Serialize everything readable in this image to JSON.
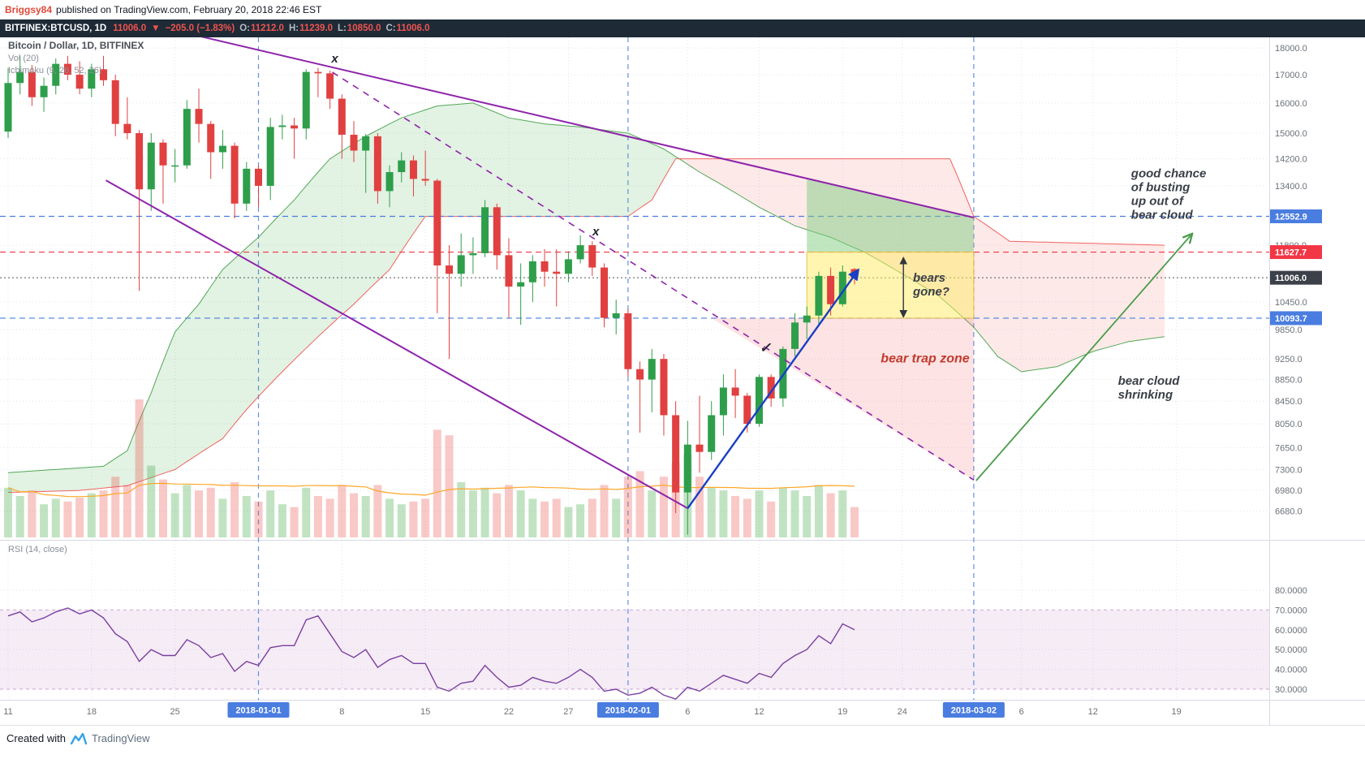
{
  "header": {
    "author": "Briggsy84",
    "published": "published on TradingView.com, February 20, 2018 22:46 EST"
  },
  "toolbar": {
    "symbol": "BITFINEX:BTCUSD, 1D",
    "last": "11006.0",
    "dir_arrow": "▼",
    "change": "−205.0 (−1.83%)",
    "o_label": "O:",
    "o": "11212.0",
    "h_label": "H:",
    "h": "11239.0",
    "l_label": "L:",
    "l": "10850.0",
    "c_label": "C:",
    "c": "11006.0"
  },
  "legend": {
    "title": "Bitcoin / Dollar, 1D, BITFINEX",
    "vol": "Vol (20)",
    "ichimoku": "Ichimoku (9, 26, 52, 26)"
  },
  "rsi_label": "RSI (14, close)",
  "footer": {
    "created_with": "Created with",
    "brand": "TradingView"
  },
  "colors": {
    "up": "#2e9e4b",
    "down": "#e14040",
    "vol_up": "rgba(76,175,80,0.35)",
    "vol_down": "rgba(231,76,70,0.30)",
    "cloud_up": "rgba(76,175,80,0.16)",
    "cloud_down": "rgba(239,83,80,0.13)",
    "senkou_a": "#43a047",
    "senkou_b": "#ef5350",
    "trendline": "#8e24aa",
    "arrow_blue": "#1a3fc4",
    "arrow_green": "#4a9d4a",
    "level_blue": "#4a7de0",
    "level_red": "#f23645",
    "price_badge_dark": "#3c4049",
    "rsi_line": "#7b3fa0",
    "rsi_band": "rgba(160,70,170,0.10)",
    "rsi_band_border": "rgba(150,70,160,0.45)",
    "volume_ma": "#ffa726",
    "zone_yellow": "rgba(255,236,100,0.50)",
    "zone_yellow_border": "rgba(230,190,60,0.90)",
    "zone_green": "rgba(130,205,130,0.50)",
    "zone_pink": "rgba(242,100,100,0.18)",
    "annotation_text": "#3a3f47",
    "bear_trap_text": "#c23b2e",
    "mark_text": "#22262e"
  },
  "chart_data": {
    "type": "candlestick",
    "symbol": "BITFINEX:BTCUSD",
    "interval": "1D",
    "start_date": "2017-12-11",
    "scale": "logarithmic",
    "ohlcv_columns": [
      "open",
      "high",
      "low",
      "close",
      "volume"
    ],
    "ohlcv": [
      [
        15050,
        17250,
        14850,
        16700,
        90
      ],
      [
        16700,
        17700,
        16300,
        17100,
        75
      ],
      [
        17100,
        17350,
        15900,
        16200,
        85
      ],
      [
        16200,
        16900,
        15700,
        16600,
        60
      ],
      [
        16600,
        17600,
        16300,
        17400,
        70
      ],
      [
        17400,
        17700,
        16800,
        17000,
        65
      ],
      [
        17000,
        17500,
        16300,
        16500,
        72
      ],
      [
        16500,
        17400,
        16200,
        17200,
        80
      ],
      [
        17200,
        17700,
        16600,
        16800,
        85
      ],
      [
        16800,
        17000,
        14900,
        15300,
        110
      ],
      [
        15300,
        16200,
        14800,
        15000,
        95
      ],
      [
        15000,
        15100,
        10700,
        13300,
        250
      ],
      [
        13300,
        15000,
        12700,
        14700,
        130
      ],
      [
        14700,
        14800,
        12900,
        14000,
        105
      ],
      [
        14000,
        14500,
        13500,
        14000,
        80
      ],
      [
        14000,
        16100,
        13900,
        15800,
        95
      ],
      [
        15800,
        16500,
        14700,
        15300,
        85
      ],
      [
        15300,
        15400,
        13600,
        14400,
        90
      ],
      [
        14400,
        15100,
        13900,
        14600,
        70
      ],
      [
        14600,
        14700,
        12500,
        12900,
        100
      ],
      [
        12900,
        14100,
        12700,
        13900,
        75
      ],
      [
        13900,
        14000,
        12800,
        13400,
        65
      ],
      [
        13400,
        15500,
        13000,
        15200,
        85
      ],
      [
        15200,
        15600,
        14800,
        15250,
        60
      ],
      [
        15250,
        15500,
        14200,
        15150,
        55
      ],
      [
        15150,
        17200,
        14800,
        17100,
        90
      ],
      [
        17100,
        17250,
        16200,
        17050,
        75
      ],
      [
        17050,
        17150,
        15800,
        16150,
        70
      ],
      [
        16150,
        16300,
        14200,
        14950,
        95
      ],
      [
        14950,
        15400,
        14100,
        14450,
        80
      ],
      [
        14450,
        14980,
        13200,
        14900,
        75
      ],
      [
        14900,
        15000,
        12900,
        13250,
        95
      ],
      [
        13250,
        14000,
        12800,
        13800,
        70
      ],
      [
        13800,
        14400,
        13500,
        14150,
        60
      ],
      [
        14150,
        14300,
        13100,
        13600,
        65
      ],
      [
        13600,
        14450,
        13400,
        13550,
        70
      ],
      [
        13550,
        13600,
        10200,
        11300,
        195
      ],
      [
        11300,
        11800,
        9250,
        11100,
        185
      ],
      [
        11100,
        12100,
        10800,
        11550,
        100
      ],
      [
        11550,
        12000,
        11100,
        11600,
        85
      ],
      [
        11600,
        13000,
        11500,
        12800,
        90
      ],
      [
        12800,
        12900,
        11200,
        11550,
        80
      ],
      [
        11550,
        11980,
        10100,
        10800,
        95
      ],
      [
        10800,
        11350,
        9950,
        10900,
        85
      ],
      [
        10900,
        11550,
        10450,
        11400,
        70
      ],
      [
        11400,
        11700,
        10800,
        11150,
        65
      ],
      [
        11150,
        11700,
        10350,
        11100,
        70
      ],
      [
        11100,
        11650,
        10900,
        11450,
        55
      ],
      [
        11450,
        12050,
        11350,
        11800,
        60
      ],
      [
        11800,
        11900,
        11050,
        11250,
        70
      ],
      [
        11250,
        11350,
        9900,
        10100,
        95
      ],
      [
        10100,
        10500,
        9750,
        10200,
        70
      ],
      [
        10200,
        10300,
        8900,
        9050,
        110
      ],
      [
        9050,
        9200,
        7900,
        8850,
        120
      ],
      [
        8850,
        9450,
        8250,
        9250,
        85
      ],
      [
        9250,
        9350,
        7850,
        8200,
        110
      ],
      [
        8200,
        8450,
        6650,
        6950,
        135
      ],
      [
        6950,
        8100,
        6350,
        7700,
        150
      ],
      [
        7700,
        8550,
        7250,
        7580,
        110
      ],
      [
        7580,
        8450,
        7450,
        8200,
        90
      ],
      [
        8200,
        8950,
        7850,
        8700,
        85
      ],
      [
        8700,
        9050,
        8150,
        8550,
        75
      ],
      [
        8550,
        8600,
        7900,
        8050,
        70
      ],
      [
        8050,
        8950,
        8000,
        8900,
        85
      ],
      [
        8900,
        8950,
        8350,
        8500,
        65
      ],
      [
        8500,
        9500,
        8350,
        9450,
        90
      ],
      [
        9450,
        10200,
        9300,
        10000,
        85
      ],
      [
        10000,
        10350,
        9650,
        10150,
        75
      ],
      [
        10150,
        11150,
        9950,
        11050,
        95
      ],
      [
        11050,
        11250,
        10150,
        10400,
        80
      ],
      [
        10400,
        11300,
        10350,
        11150,
        85
      ],
      [
        11212,
        11239,
        10850,
        11006,
        55
      ]
    ],
    "rsi_period": 14,
    "rsi_values": [
      67,
      69,
      64,
      66,
      69,
      71,
      68,
      70,
      66,
      58,
      54,
      44,
      50,
      47,
      47,
      55,
      52,
      46,
      48,
      39,
      44,
      42,
      51,
      52,
      52,
      65,
      67,
      58,
      49,
      46,
      50,
      41,
      45,
      47,
      43,
      43,
      31,
      29,
      33,
      34,
      42,
      36,
      31,
      32,
      36,
      34,
      33,
      36,
      40,
      36,
      29,
      30,
      27,
      28,
      31,
      27,
      25,
      31,
      29,
      33,
      37,
      35,
      33,
      38,
      36,
      43,
      47,
      50,
      57,
      53,
      63,
      60
    ],
    "rsi_ticks": [
      [
        80,
        "80.0000"
      ],
      [
        70,
        "70.0000"
      ],
      [
        60,
        "60.0000"
      ],
      [
        50,
        "50.0000"
      ],
      [
        40,
        "40.0000"
      ],
      [
        30,
        "30.0000"
      ]
    ],
    "rsi_band": {
      "upper": 70,
      "lower": 30
    },
    "volume_ma_period": 20,
    "ichimoku": {
      "params": "9, 26, 52, 26",
      "senkou_a": [
        [
          0,
          7250
        ],
        [
          4,
          7300
        ],
        [
          8,
          7350
        ],
        [
          10,
          7600
        ],
        [
          12,
          8600
        ],
        [
          14,
          9800
        ],
        [
          16,
          10400
        ],
        [
          18,
          11200
        ],
        [
          21,
          12000
        ],
        [
          24,
          13000
        ],
        [
          27,
          14200
        ],
        [
          30,
          14900
        ],
        [
          33,
          15500
        ],
        [
          36,
          15900
        ],
        [
          39,
          16000
        ],
        [
          42,
          15500
        ],
        [
          45,
          15300
        ],
        [
          48,
          15200
        ],
        [
          52,
          15000
        ],
        [
          55,
          14500
        ],
        [
          58,
          13800
        ],
        [
          61,
          13200
        ],
        [
          63,
          12800
        ],
        [
          66,
          12300
        ],
        [
          69,
          12000
        ],
        [
          72,
          11600
        ],
        [
          75,
          11100
        ],
        [
          78,
          10600
        ],
        [
          81,
          9900
        ],
        [
          83,
          9300
        ],
        [
          85,
          9000
        ],
        [
          88,
          9100
        ],
        [
          91,
          9400
        ],
        [
          94,
          9600
        ],
        [
          97,
          9700
        ]
      ],
      "senkou_b": [
        [
          0,
          6950
        ],
        [
          6,
          6980
        ],
        [
          10,
          7050
        ],
        [
          14,
          7300
        ],
        [
          18,
          7800
        ],
        [
          20,
          8300
        ],
        [
          23,
          9000
        ],
        [
          26,
          9700
        ],
        [
          29,
          10400
        ],
        [
          32,
          11200
        ],
        [
          35,
          12550
        ],
        [
          52,
          12550
        ],
        [
          54,
          13000
        ],
        [
          56,
          14200
        ],
        [
          79,
          14200
        ],
        [
          81,
          12550
        ],
        [
          84,
          11900
        ],
        [
          97,
          11800
        ]
      ]
    },
    "price_ticks": [
      [
        18000,
        "18000.0"
      ],
      [
        17000,
        "17000.0"
      ],
      [
        16000,
        "16000.0"
      ],
      [
        15000,
        "15000.0"
      ],
      [
        14200,
        "14200.0"
      ],
      [
        13400,
        "13400.0"
      ],
      [
        11800,
        "11800.0"
      ],
      [
        10450,
        "10450.0"
      ],
      [
        9850,
        "9850.0"
      ],
      [
        9250,
        "9250.0"
      ],
      [
        8850,
        "8850.0"
      ],
      [
        8450,
        "8450.0"
      ],
      [
        8050,
        "8050.0"
      ],
      [
        7650,
        "7650.0"
      ],
      [
        7300,
        "7300.0"
      ],
      [
        6980,
        "6980.0"
      ],
      [
        6680,
        "6680.0"
      ]
    ],
    "price_levels": [
      {
        "price": 12552.9,
        "label": "12552.9",
        "type": "blue"
      },
      {
        "price": 11627.7,
        "label": "11627.7",
        "type": "red"
      },
      {
        "price": 11006.0,
        "label": "11006.0",
        "type": "current"
      },
      {
        "price": 10093.7,
        "label": "10093.7",
        "type": "blue"
      }
    ],
    "time_ticks": [
      [
        0,
        "11"
      ],
      [
        7,
        "18"
      ],
      [
        14,
        "25"
      ],
      [
        28,
        "8"
      ],
      [
        35,
        "15"
      ],
      [
        42,
        "22"
      ],
      [
        47,
        "27"
      ],
      [
        57,
        "6"
      ],
      [
        63,
        "12"
      ],
      [
        70,
        "19"
      ],
      [
        75,
        "24"
      ],
      [
        85,
        "6"
      ],
      [
        91,
        "12"
      ],
      [
        98,
        "19"
      ]
    ],
    "month_lines": [
      [
        21,
        "2018-01-01"
      ],
      [
        52,
        "2018-02-01"
      ],
      [
        81,
        "2018-03-02"
      ]
    ],
    "drawings": {
      "trendlines": [
        {
          "from": [
            14.8,
            18600
          ],
          "to": [
            81,
            12520
          ],
          "style": "solid"
        },
        {
          "from": [
            8.2,
            13560
          ],
          "to": [
            57,
            6718
          ],
          "style": "solid"
        },
        {
          "from": [
            27.2,
            17090
          ],
          "to": [
            81,
            7138
          ],
          "style": "dashed"
        }
      ],
      "arrows": [
        {
          "from": [
            57,
            6718
          ],
          "to": [
            71.3,
            11185
          ],
          "color": "blue"
        },
        {
          "from": [
            81.2,
            7127
          ],
          "to": [
            99.2,
            12050
          ],
          "color": "green"
        }
      ],
      "range_arrow": {
        "day": 75.1,
        "from": 11480,
        "to": 10130
      },
      "shapes": [
        {
          "type": "quad",
          "points": [
            [
              67,
              13600
            ],
            [
              81,
              12520
            ],
            [
              81,
              11627.7
            ],
            [
              67,
              11627.7
            ]
          ],
          "fill": "green"
        },
        {
          "type": "rect",
          "from": [
            67,
            11627.7
          ],
          "to": [
            81,
            10093.7
          ],
          "fill": "yellow"
        },
        {
          "type": "triangle",
          "points": [
            [
              59,
              10093.7
            ],
            [
              81,
              10093.7
            ],
            [
              81,
              7138
            ]
          ],
          "fill": "pink"
        }
      ],
      "marks": [
        {
          "text": "x",
          "at": [
            27.4,
            17450
          ]
        },
        {
          "text": "x",
          "at": [
            49.3,
            12050
          ]
        },
        {
          "text": "✓",
          "at": [
            63.5,
            9380
          ]
        }
      ],
      "labels": [
        {
          "text": "good chance\nof busting\nup out of\nbear cloud",
          "at": [
            94.2,
            13650
          ],
          "color": "dark"
        },
        {
          "text": "bears\ngone?",
          "at": [
            75.9,
            10915
          ],
          "color": "dark"
        },
        {
          "text": "bear trap zone",
          "at": [
            73.2,
            9180
          ],
          "color": "red"
        },
        {
          "text": "bear cloud\nshrinking",
          "at": [
            93.1,
            8750
          ],
          "color": "dark"
        }
      ]
    }
  }
}
